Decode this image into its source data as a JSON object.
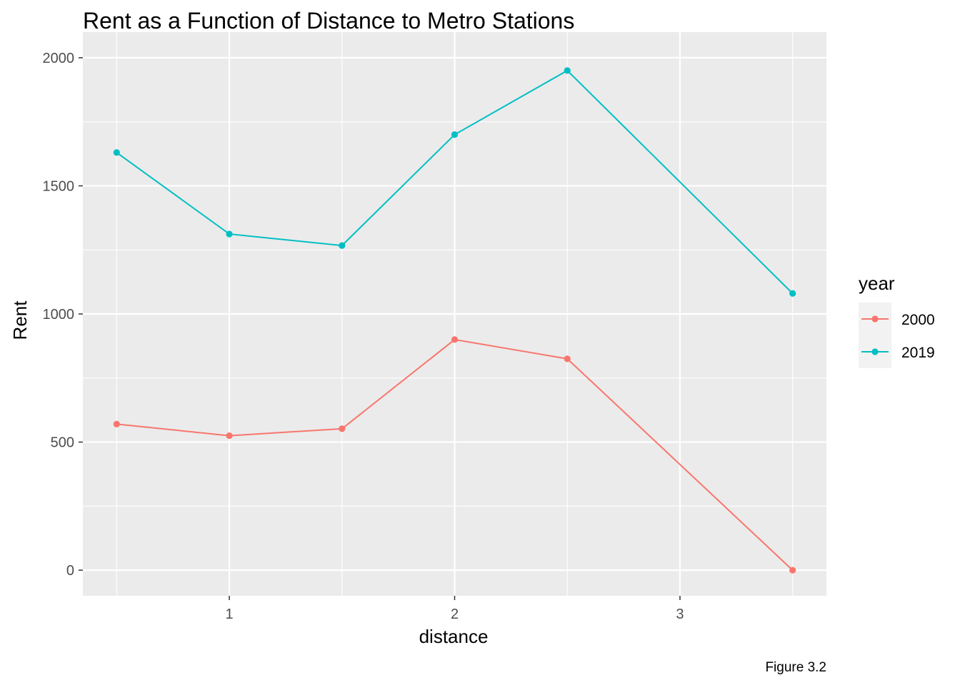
{
  "colors": {
    "panel_background": "#EBEBEB",
    "grid_major": "#FFFFFF",
    "grid_minor": "#F5F5F5",
    "legend_key_background": "#F2F2F2",
    "tick_text": "#4D4D4D"
  },
  "chart_data": {
    "type": "line",
    "title": "Rent as a Function of Distance to Metro Stations",
    "xlabel": "distance",
    "ylabel": "Rent",
    "caption": "Figure 3.2",
    "xlim": [
      0.5,
      3.5
    ],
    "ylim": [
      0,
      2000
    ],
    "x_ticks": [
      1,
      2,
      3
    ],
    "x_tick_labels": [
      "1",
      "2",
      "3"
    ],
    "y_ticks": [
      0,
      500,
      1000,
      1500,
      2000
    ],
    "y_tick_labels": [
      "0",
      "500",
      "1000",
      "1500",
      "2000"
    ],
    "grid": true,
    "legend": {
      "title": "year",
      "placement": "right"
    },
    "x": [
      0.5,
      1.0,
      1.5,
      2.0,
      2.5,
      3.5
    ],
    "series": [
      {
        "name": "2000",
        "color": "#F8766D",
        "values": [
          570,
          525,
          552,
          900,
          825,
          0
        ]
      },
      {
        "name": "2019",
        "color": "#00BFC4",
        "values": [
          1630,
          1312,
          1267,
          1700,
          1950,
          1080
        ]
      }
    ]
  }
}
